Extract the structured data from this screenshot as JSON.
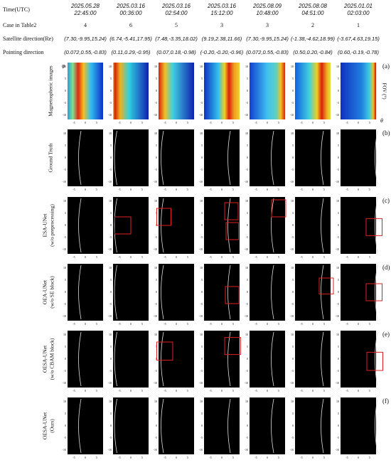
{
  "header": {
    "labels": [
      "Time(UTC)",
      "Case in Table2",
      "Satellite direction(Re)",
      "Pointing direction"
    ],
    "columns": [
      {
        "date": "2025.05.28",
        "time": "22:45:00",
        "case": "4",
        "satellite": "(7.30,-9.95,15.24)",
        "pointing": "(0.072,0.55,-0.83)"
      },
      {
        "date": "2025.03.16",
        "time": "00:36:00",
        "case": "6",
        "satellite": "(6.74,-5.41,17.95)",
        "pointing": "(0.11,0.29,-0.95)"
      },
      {
        "date": "2025.03.16",
        "time": "02:54:00",
        "case": "5",
        "satellite": "(7.48,-3.35,18.02)",
        "pointing": "(0.07,0.18,-0.98)"
      },
      {
        "date": "2025.03.16",
        "time": "15:12:00",
        "case": "3",
        "satellite": "(9.19,2.38,11.66)",
        "pointing": "(-0.20,-0.20,-0.96)"
      },
      {
        "date": "2025.08.09",
        "time": "10:48:00",
        "case": "3",
        "satellite": "(7.30,-9.95,15.24)",
        "pointing": "(0.072,0.55,-0.83)"
      },
      {
        "date": "2025.08.08",
        "time": "04:51:00",
        "case": "2",
        "satellite": "(-1.38,-4.62,18.99)",
        "pointing": "(0.50,0.20,-0.84)"
      },
      {
        "date": "2025.01.01",
        "time": "02:03:00",
        "case": "1",
        "satellite": "(-3.67,4.63,19.15)",
        "pointing": "(0.60,-0.19,-0.78)"
      }
    ]
  },
  "rows": [
    {
      "label": [
        "Magnetospheric images"
      ],
      "tag": "(a)"
    },
    {
      "label": [
        "Ground Truth"
      ],
      "tag": "(b)"
    },
    {
      "label": [
        "ESA-UNet",
        "(w/o preprocessing)"
      ],
      "tag": "(c)"
    },
    {
      "label": [
        "OEA-UNet",
        "(w/o SE block)"
      ],
      "tag": "(d)"
    },
    {
      "label": [
        "OESA-UNet",
        "(w/o CBAM block)"
      ],
      "tag": "(e)"
    },
    {
      "label": [
        "OESA-UNet",
        "(Ours)"
      ],
      "tag": "(f)"
    }
  ],
  "axes": {
    "y_label": "φ",
    "x_label": "θ",
    "colorbar_label": "FOV (°)",
    "yticks": [
      "10",
      "5",
      "0",
      "-5",
      "-10"
    ],
    "xticks": [
      "-5",
      "0",
      "5"
    ]
  }
}
